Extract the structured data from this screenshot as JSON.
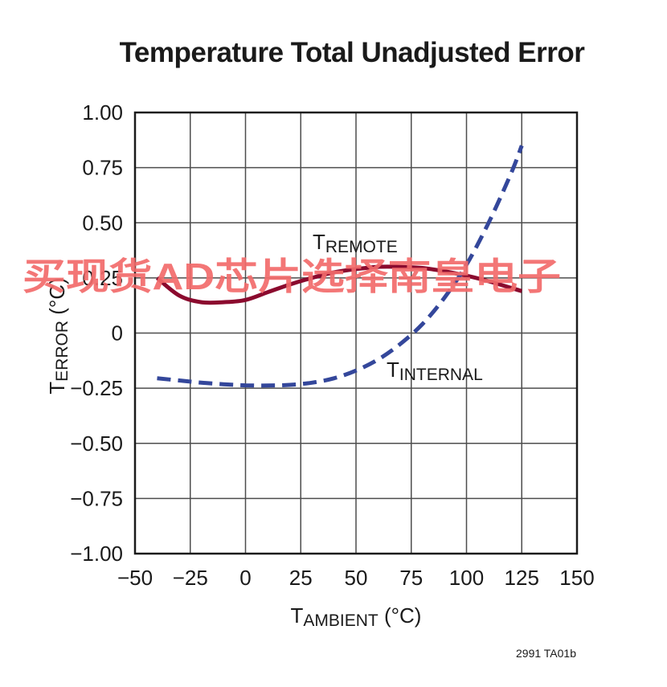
{
  "chart_data": {
    "type": "line",
    "title": "Temperature Total Unadjusted Error",
    "xlabel": {
      "main": "T",
      "sub": "AMBIENT",
      "unit": " (°C)"
    },
    "ylabel": {
      "main": "T",
      "sub": "ERROR",
      "unit": " (°C)"
    },
    "xlim": [
      -50,
      150
    ],
    "ylim": [
      -1.0,
      1.0
    ],
    "x_ticks": [
      -50,
      -25,
      0,
      25,
      50,
      75,
      100,
      125,
      150
    ],
    "x_tick_labels": [
      "−50",
      "−25",
      "0",
      "25",
      "50",
      "75",
      "100",
      "125",
      "150"
    ],
    "y_ticks": [
      1.0,
      0.75,
      0.5,
      0.25,
      0,
      -0.25,
      -0.5,
      -0.75,
      -1.0
    ],
    "y_tick_labels": [
      "1.00",
      "0.75",
      "0.50",
      "0.25",
      "0",
      "−0.25",
      "−0.50",
      "−0.75",
      "−1.00"
    ],
    "grid": true,
    "series": [
      {
        "label_main": "T",
        "label_sub": "REMOTE",
        "color": "#8b0a2e",
        "style": "solid",
        "x": [
          -40,
          -30,
          -20,
          -10,
          0,
          10,
          20,
          30,
          40,
          50,
          60,
          70,
          80,
          90,
          100,
          110,
          125
        ],
        "y": [
          0.25,
          0.17,
          0.14,
          0.14,
          0.15,
          0.185,
          0.22,
          0.25,
          0.275,
          0.29,
          0.3,
          0.3,
          0.295,
          0.28,
          0.26,
          0.235,
          0.19
        ]
      },
      {
        "label_main": "T",
        "label_sub": "INTERNAL",
        "color": "#34479b",
        "style": "dashed",
        "x": [
          -40,
          -30,
          -20,
          -10,
          0,
          10,
          20,
          30,
          40,
          50,
          60,
          70,
          80,
          90,
          100,
          110,
          120,
          125
        ],
        "y": [
          -0.205,
          -0.215,
          -0.225,
          -0.232,
          -0.237,
          -0.238,
          -0.235,
          -0.225,
          -0.205,
          -0.17,
          -0.12,
          -0.05,
          0.04,
          0.16,
          0.31,
          0.5,
          0.72,
          0.85
        ]
      }
    ],
    "figure_code": "2991 TA01b"
  },
  "watermark": "买现货AD芯片选择南皇电子"
}
